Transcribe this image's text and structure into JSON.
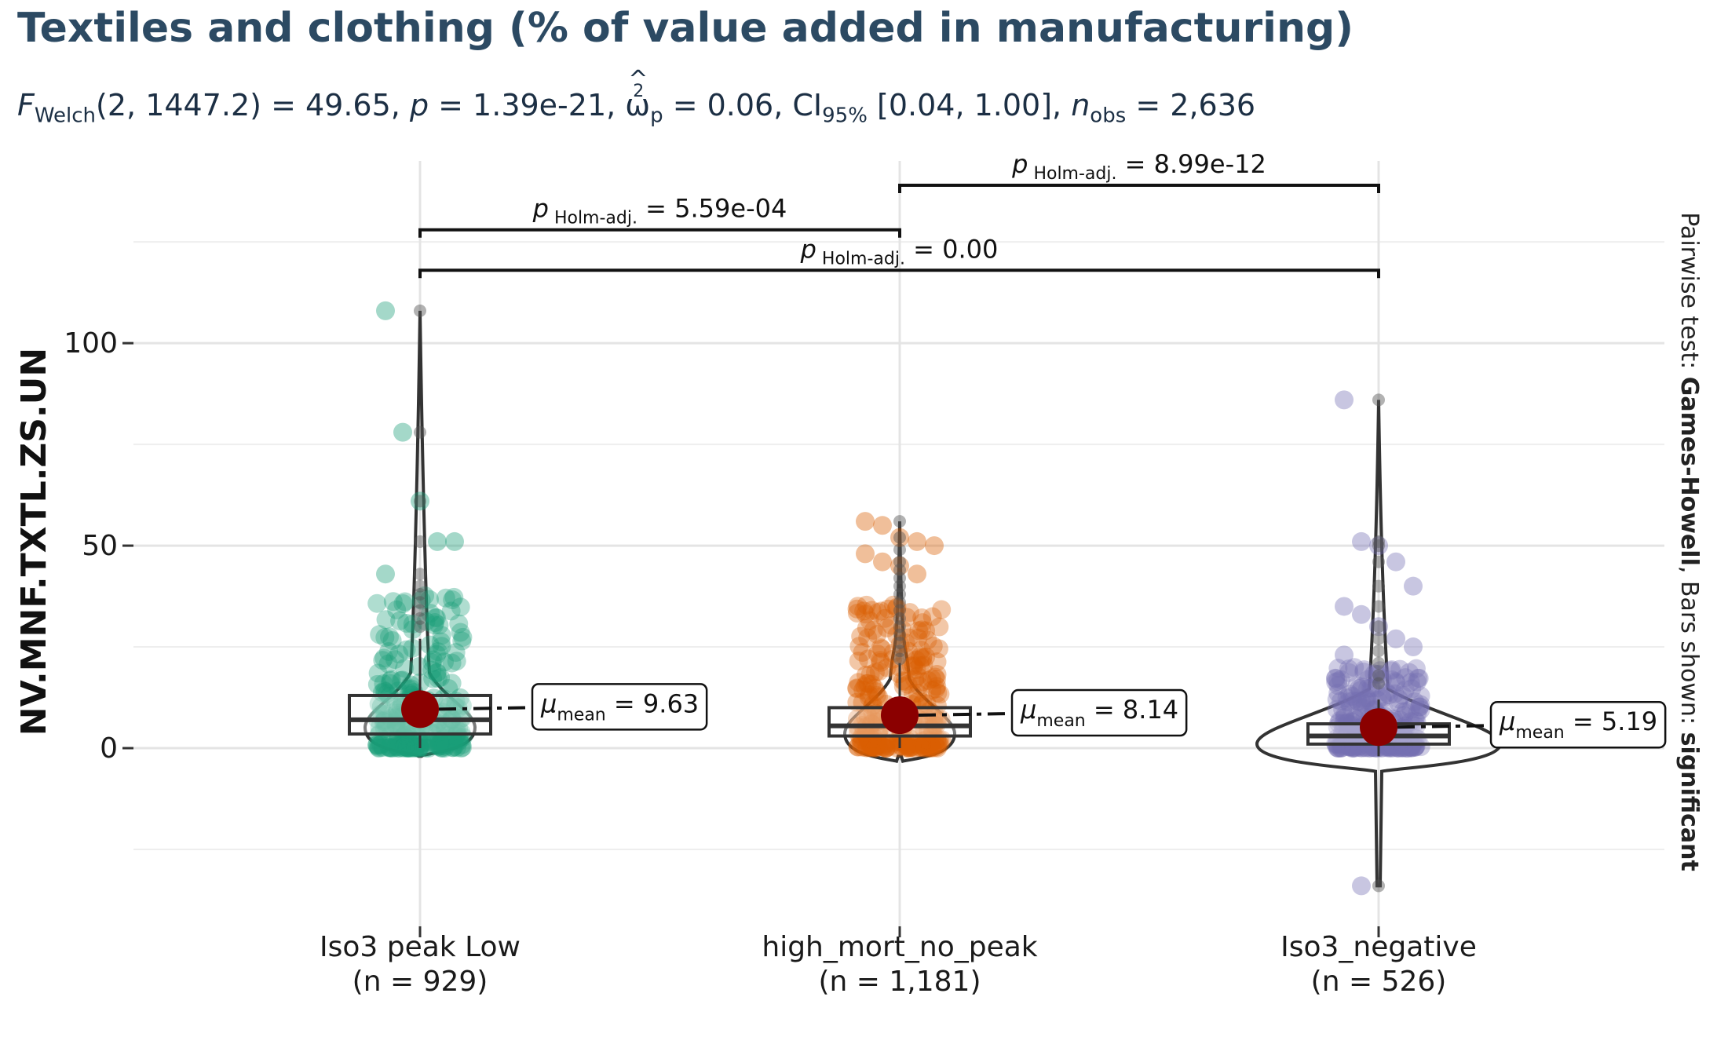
{
  "title": "Textiles and clothing (% of value added in manufacturing)",
  "subtitle": {
    "stat_name": "F",
    "stat_sub": "Welch",
    "stat_args": "(2, 1447.2) = 49.65, ",
    "p_name": "p",
    "p_value": " = 1.39e-21, ",
    "effect_name": "ω",
    "effect_sup": "2",
    "effect_sub": "p",
    "effect_value": " = 0.06, CI",
    "ci_sub": "95%",
    "ci_value": " [0.04, 1.00], ",
    "n_name": "n",
    "n_sub": "obs",
    "n_value": " = 2,636"
  },
  "side_caption": {
    "prefix": "Pairwise test: ",
    "test": "Games-Howell",
    "middle": ", Bars shown: ",
    "bars": "significant"
  },
  "mean_prefix": "μ",
  "mean_sub": "mean",
  "p_prefix": "p",
  "p_sub": "Holm-adj.",
  "chart_data": {
    "type": "violin-box-scatter",
    "ylabel": "NV.MNF.TXTL.ZS.UN",
    "xlabel": "",
    "ylim": [
      -44,
      145
    ],
    "yticks": [
      0,
      50,
      100
    ],
    "grid": true,
    "groups": [
      {
        "category": "Iso3 peak  Low",
        "n_label": "(n = 929)",
        "color": "#1b9e77",
        "mean": 9.63,
        "mean_label": "9.63",
        "box": {
          "q1": 3.5,
          "median": 7,
          "q3": 13,
          "min": 0,
          "max": 27
        },
        "outliers": [
          108,
          78,
          61,
          51,
          43,
          40,
          38,
          36,
          34,
          32,
          30
        ],
        "jitter_max": 40,
        "extra_points": [
          108,
          78,
          61,
          51,
          51,
          43
        ]
      },
      {
        "category": "high_mort_no_peak",
        "n_label": "(n = 1,181)",
        "color": "#d95f02",
        "mean": 8.14,
        "mean_label": "8.14",
        "box": {
          "q1": 3,
          "median": 5.5,
          "q3": 10,
          "min": 0,
          "max": 21
        },
        "outliers": [
          56,
          52,
          49,
          46,
          44,
          42,
          40,
          38,
          36,
          34,
          32,
          30,
          28,
          26,
          24,
          22
        ],
        "jitter_max": 36,
        "extra_points": [
          56,
          55,
          52,
          51,
          50,
          48,
          46,
          45,
          43
        ]
      },
      {
        "category": "Iso3_negative",
        "n_label": "(n = 526)",
        "color": "#7570b3",
        "mean": 5.19,
        "mean_label": "5.19",
        "box": {
          "q1": 1,
          "median": 3,
          "q3": 6,
          "min": -2,
          "max": 12
        },
        "outliers": [
          86,
          51,
          50,
          46,
          40,
          35,
          30,
          27,
          24,
          21,
          18,
          16,
          -34
        ],
        "jitter_max": 20,
        "extra_points": [
          86,
          51,
          50,
          46,
          40,
          35,
          33,
          30,
          27,
          25,
          23,
          -34
        ]
      }
    ],
    "comparisons": [
      {
        "from": 0,
        "to": 1,
        "p": "5.59e-04",
        "y": 128
      },
      {
        "from": 1,
        "to": 2,
        "p": "8.99e-12",
        "y": 139
      },
      {
        "from": 0,
        "to": 2,
        "p": "0.00",
        "y": 118
      }
    ]
  }
}
